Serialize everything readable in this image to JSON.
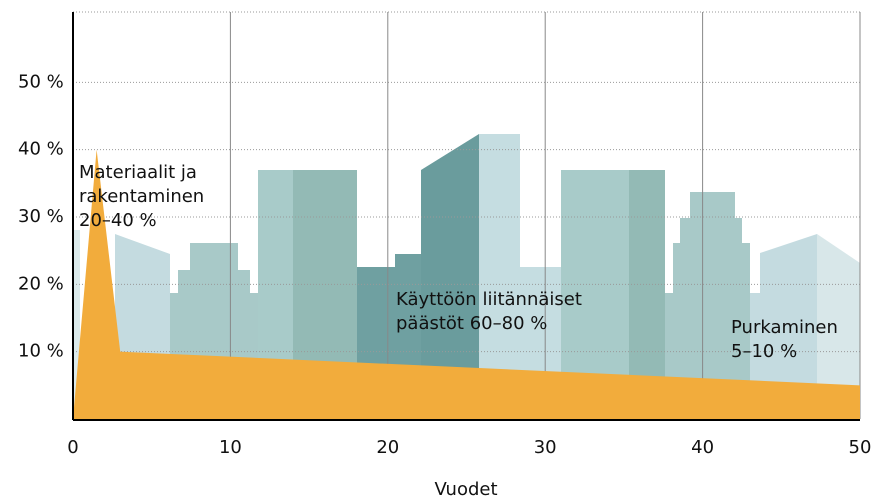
{
  "chart_data": {
    "type": "area",
    "xlabel": "Vuodet",
    "x": [
      0,
      1.5,
      3,
      50
    ],
    "series": [
      {
        "color": "#f2ac3c",
        "values": [
          0,
          40,
          10,
          5
        ]
      }
    ],
    "xlim": [
      0,
      50
    ],
    "xticks": [
      0,
      10,
      20,
      30,
      40,
      50
    ],
    "ylim": [
      0,
      60
    ],
    "yticks": [
      {
        "value": 10,
        "label": "10 %"
      },
      {
        "value": 20,
        "label": "20 %"
      },
      {
        "value": 30,
        "label": "30 %"
      },
      {
        "value": 40,
        "label": "40 %"
      },
      {
        "value": 50,
        "label": "50 %"
      }
    ],
    "grid": true,
    "annotations": [
      [
        "Materiaalit ja",
        "rakentaminen",
        "20–40 %"
      ],
      [
        "Käyttöön liitännäiset",
        "päästöt 60–80 %"
      ],
      [
        "Purkaminen",
        "5–10 %"
      ]
    ]
  }
}
